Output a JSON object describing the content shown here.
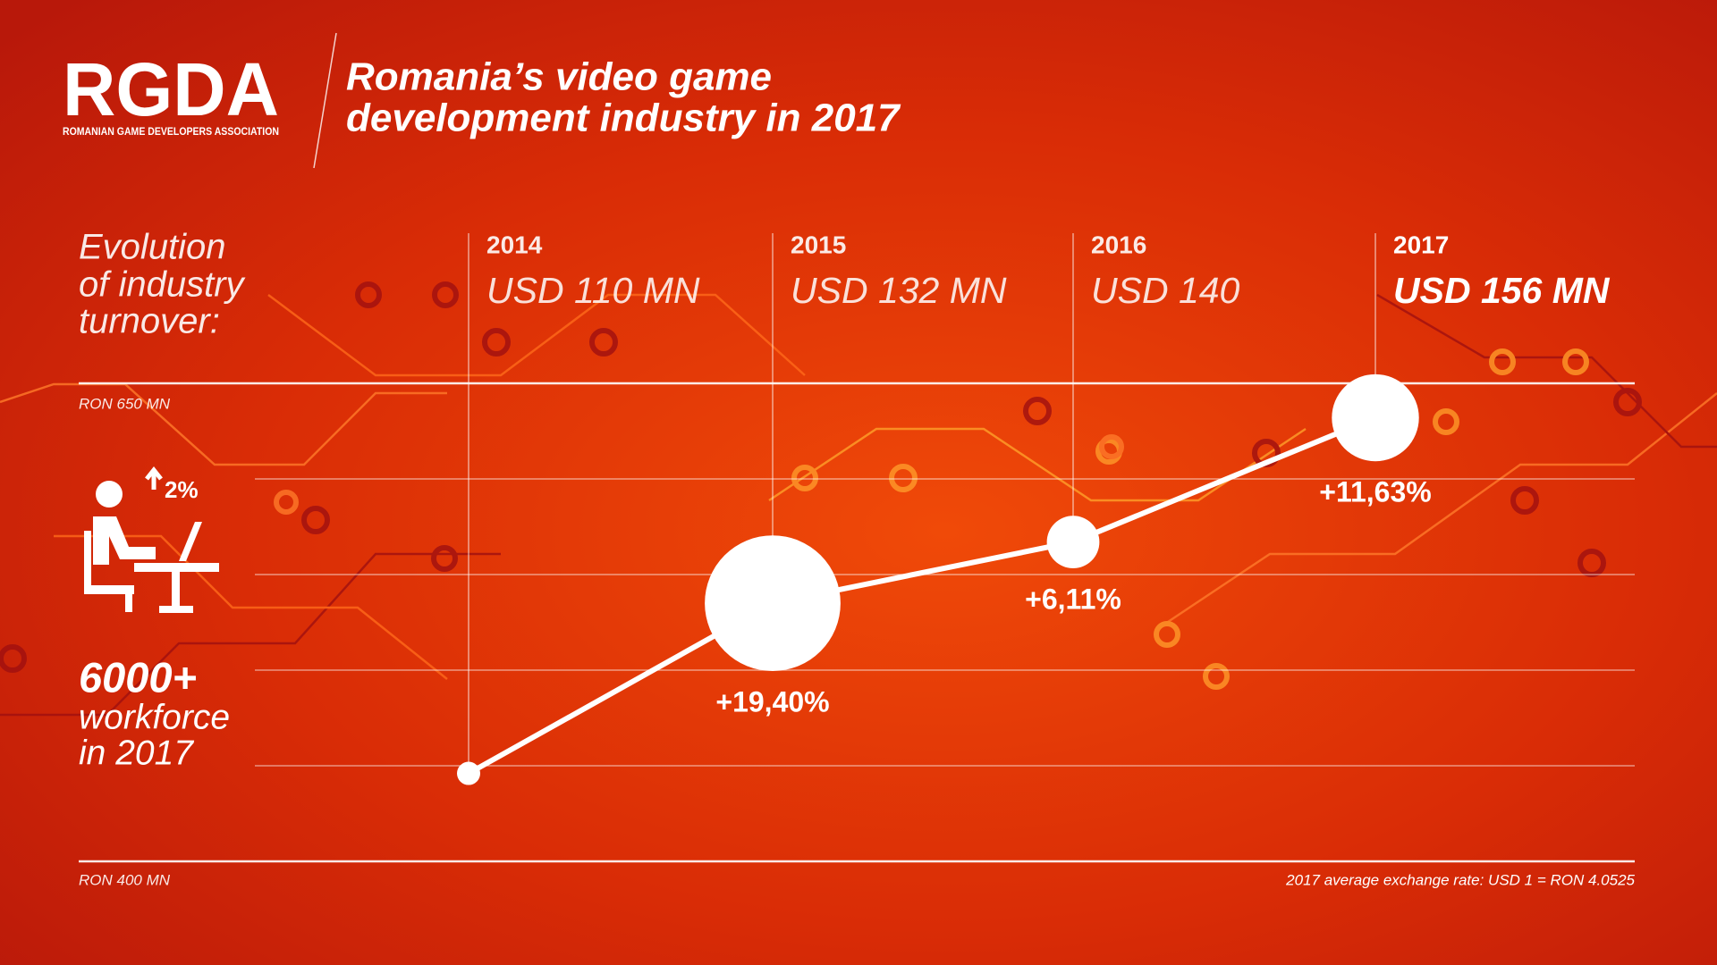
{
  "header": {
    "logo": "RGDA",
    "logo_subtitle": "ROMANIAN GAME DEVELOPERS ASSOCIATION",
    "title_lines": [
      "Romania’s video game",
      "development industry in 2017"
    ]
  },
  "chart_data": {
    "type": "line",
    "title_lines": [
      "Evolution",
      "of industry",
      "turnover:"
    ],
    "categories": [
      "2014",
      "2015",
      "2016",
      "2017"
    ],
    "category_labels": [
      "USD 110 MN",
      "USD 132 MN",
      "USD 140",
      "USD 156 MN"
    ],
    "values": [
      446,
      535,
      567,
      632
    ],
    "growth": [
      null,
      19.4,
      6.11,
      11.63
    ],
    "growth_labels": [
      null,
      "+19,40%",
      "+6,11%",
      "+11,63%"
    ],
    "ylim": [
      400,
      650
    ],
    "yticks": [
      400,
      450,
      500,
      550,
      600,
      650
    ],
    "ylabels": [
      {
        "value": 650,
        "label": "RON 650 MN"
      },
      {
        "value": 400,
        "label": "RON 400 MN"
      }
    ],
    "note": "2017 average exchange rate: USD 1 = RON 4.0525",
    "color": "#ffffff"
  },
  "workforce": {
    "change": "2%",
    "count": "6000+",
    "label_lines": [
      "workforce",
      "in 2017"
    ]
  }
}
